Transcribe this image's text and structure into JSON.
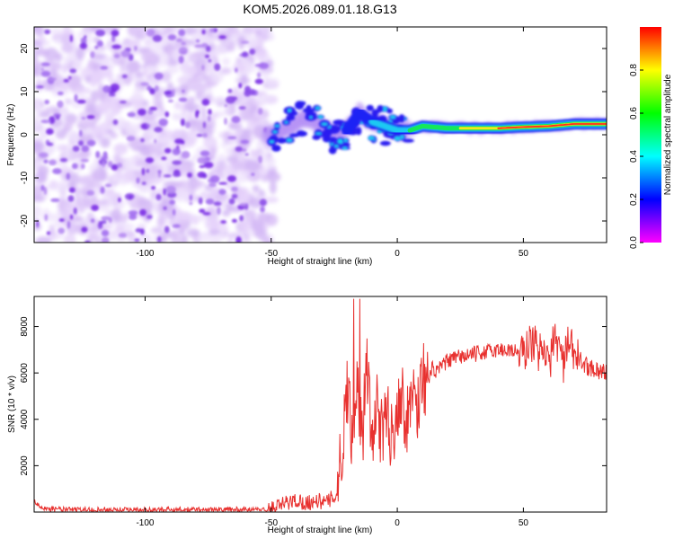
{
  "title": "KOM5.2026.089.01.18.G13",
  "chart_data": [
    {
      "type": "heatmap",
      "name": "spectrogram",
      "xlabel": "Height of straight line (km)",
      "ylabel": "Frequency (Hz)",
      "xlim": [
        -144,
        83
      ],
      "ylim": [
        -25,
        25
      ],
      "xticks": [
        -100,
        -50,
        0,
        50
      ],
      "yticks": [
        -20,
        -10,
        0,
        10,
        20
      ],
      "colorbar": {
        "label": "Normalized spectral amplitude",
        "range": [
          0,
          1
        ],
        "ticks": [
          0.0,
          0.2,
          0.4,
          0.6,
          0.8
        ],
        "colors": [
          "#ff00ff",
          "#0000ff",
          "#00ffff",
          "#00ff00",
          "#ffff00",
          "#ff0000"
        ]
      },
      "noise_region_x": [
        -144,
        -52
      ],
      "signal_track": {
        "x": [
          -52,
          -45,
          -40,
          -35,
          -30,
          -25,
          -20,
          -15,
          -10,
          -5,
          0,
          5,
          10,
          20,
          30,
          40,
          50,
          60,
          70,
          83
        ],
        "freq": [
          0,
          1,
          3,
          4,
          2,
          0,
          1,
          5,
          3,
          2,
          1,
          1,
          2,
          1.5,
          1.5,
          1.5,
          1.8,
          2,
          2.5,
          2.5
        ]
      }
    },
    {
      "type": "line",
      "name": "snr",
      "xlabel": "Height of straight line (km)",
      "ylabel": "SNR (10 * v/v)",
      "xlim": [
        -144,
        83
      ],
      "ylim": [
        0,
        9300
      ],
      "xticks": [
        -100,
        -50,
        0,
        50
      ],
      "yticks": [
        2000,
        4000,
        6000,
        8000
      ],
      "color": "#e8312f",
      "x": [
        -144,
        -140,
        -130,
        -120,
        -110,
        -100,
        -90,
        -80,
        -70,
        -60,
        -52,
        -48,
        -44,
        -40,
        -36,
        -32,
        -28,
        -24,
        -22,
        -20,
        -18,
        -16,
        -14,
        -12,
        -10,
        -8,
        -6,
        -4,
        -2,
        0,
        2,
        4,
        6,
        8,
        10,
        12,
        14,
        16,
        18,
        20,
        25,
        30,
        35,
        40,
        45,
        50,
        52,
        54,
        56,
        58,
        60,
        62,
        64,
        66,
        68,
        70,
        72,
        75,
        78,
        80,
        83
      ],
      "y": [
        500,
        150,
        100,
        100,
        100,
        100,
        100,
        100,
        100,
        100,
        100,
        200,
        400,
        500,
        400,
        500,
        400,
        800,
        2500,
        5500,
        3500,
        6000,
        3000,
        6500,
        2500,
        5000,
        3000,
        4500,
        3000,
        4800,
        5000,
        3800,
        5500,
        4500,
        6000,
        5500,
        6200,
        6000,
        6400,
        6500,
        6700,
        6800,
        6900,
        7000,
        7000,
        6800,
        7200,
        7400,
        6800,
        7500,
        6000,
        7600,
        7200,
        6400,
        7300,
        6800,
        6600,
        6300,
        6200,
        6100,
        6000
      ]
    }
  ]
}
